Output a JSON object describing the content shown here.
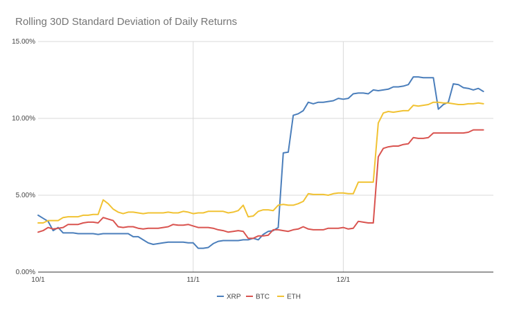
{
  "chart_data": {
    "type": "line",
    "title": "Rolling 30D Standard Deviation of Daily Returns",
    "xlabel": "",
    "ylabel": "",
    "ylim": [
      0,
      15
    ],
    "xlim": [
      0,
      91
    ],
    "y_ticks": [
      {
        "value": 0,
        "label": "0.00%"
      },
      {
        "value": 5,
        "label": "5.00%"
      },
      {
        "value": 10,
        "label": "10.00%"
      },
      {
        "value": 15,
        "label": "15.00%"
      }
    ],
    "x_ticks": [
      {
        "value": 0,
        "label": "10/1"
      },
      {
        "value": 31,
        "label": "11/1"
      },
      {
        "value": 61,
        "label": "12/1"
      }
    ],
    "legend_position": "bottom",
    "grid": true,
    "series": [
      {
        "name": "XRP",
        "color": "#4a7ebb",
        "values": [
          3.7,
          3.5,
          3.3,
          2.7,
          2.9,
          2.55,
          2.55,
          2.55,
          2.5,
          2.5,
          2.5,
          2.5,
          2.45,
          2.5,
          2.5,
          2.5,
          2.5,
          2.5,
          2.5,
          2.3,
          2.3,
          2.1,
          1.9,
          1.8,
          1.85,
          1.9,
          1.95,
          1.95,
          1.95,
          1.95,
          1.9,
          1.9,
          1.55,
          1.55,
          1.6,
          1.85,
          2.0,
          2.05,
          2.05,
          2.05,
          2.05,
          2.1,
          2.1,
          2.2,
          2.1,
          2.45,
          2.65,
          2.7,
          2.9,
          7.75,
          7.8,
          10.2,
          10.3,
          10.5,
          11.05,
          10.95,
          11.05,
          11.05,
          11.1,
          11.15,
          11.3,
          11.25,
          11.3,
          11.6,
          11.65,
          11.65,
          11.6,
          11.85,
          11.8,
          11.85,
          11.9,
          12.05,
          12.05,
          12.1,
          12.2,
          12.7,
          12.7,
          12.65,
          12.65,
          12.65,
          10.6,
          10.9,
          11.05,
          12.25,
          12.2,
          12.0,
          11.95,
          11.85,
          11.95,
          11.75
        ]
      },
      {
        "name": "BTC",
        "color": "#d9534f",
        "values": [
          2.6,
          2.7,
          2.9,
          2.8,
          2.85,
          2.9,
          3.1,
          3.1,
          3.1,
          3.2,
          3.25,
          3.25,
          3.2,
          3.55,
          3.45,
          3.35,
          2.95,
          2.9,
          2.95,
          2.95,
          2.85,
          2.8,
          2.85,
          2.85,
          2.85,
          2.9,
          2.95,
          3.1,
          3.05,
          3.05,
          3.1,
          3.0,
          2.9,
          2.9,
          2.9,
          2.85,
          2.75,
          2.7,
          2.6,
          2.65,
          2.7,
          2.65,
          2.2,
          2.2,
          2.35,
          2.35,
          2.4,
          2.75,
          2.75,
          2.7,
          2.65,
          2.75,
          2.8,
          2.95,
          2.8,
          2.75,
          2.75,
          2.75,
          2.85,
          2.85,
          2.85,
          2.9,
          2.8,
          2.85,
          3.3,
          3.25,
          3.2,
          3.2,
          7.5,
          8.05,
          8.15,
          8.2,
          8.2,
          8.3,
          8.35,
          8.75,
          8.7,
          8.7,
          8.75,
          9.05,
          9.05,
          9.05,
          9.05,
          9.05,
          9.05,
          9.05,
          9.1,
          9.25,
          9.25,
          9.25
        ]
      },
      {
        "name": "ETH",
        "color": "#f1c232",
        "values": [
          3.2,
          3.2,
          3.35,
          3.35,
          3.35,
          3.55,
          3.6,
          3.6,
          3.6,
          3.7,
          3.7,
          3.75,
          3.75,
          4.7,
          4.45,
          4.1,
          3.9,
          3.8,
          3.9,
          3.9,
          3.85,
          3.8,
          3.85,
          3.85,
          3.85,
          3.85,
          3.9,
          3.85,
          3.85,
          3.95,
          3.9,
          3.8,
          3.85,
          3.85,
          3.95,
          3.95,
          3.95,
          3.95,
          3.85,
          3.9,
          4.0,
          4.35,
          3.6,
          3.65,
          3.95,
          4.05,
          4.05,
          4.0,
          4.35,
          4.4,
          4.35,
          4.35,
          4.45,
          4.6,
          5.1,
          5.05,
          5.05,
          5.05,
          5.0,
          5.1,
          5.15,
          5.15,
          5.1,
          5.1,
          5.85,
          5.85,
          5.85,
          5.85,
          9.7,
          10.35,
          10.45,
          10.4,
          10.45,
          10.5,
          10.5,
          10.85,
          10.8,
          10.85,
          10.9,
          11.05,
          11.05,
          11.0,
          11.0,
          10.95,
          10.9,
          10.9,
          10.95,
          10.95,
          11.0,
          10.95
        ]
      }
    ]
  }
}
